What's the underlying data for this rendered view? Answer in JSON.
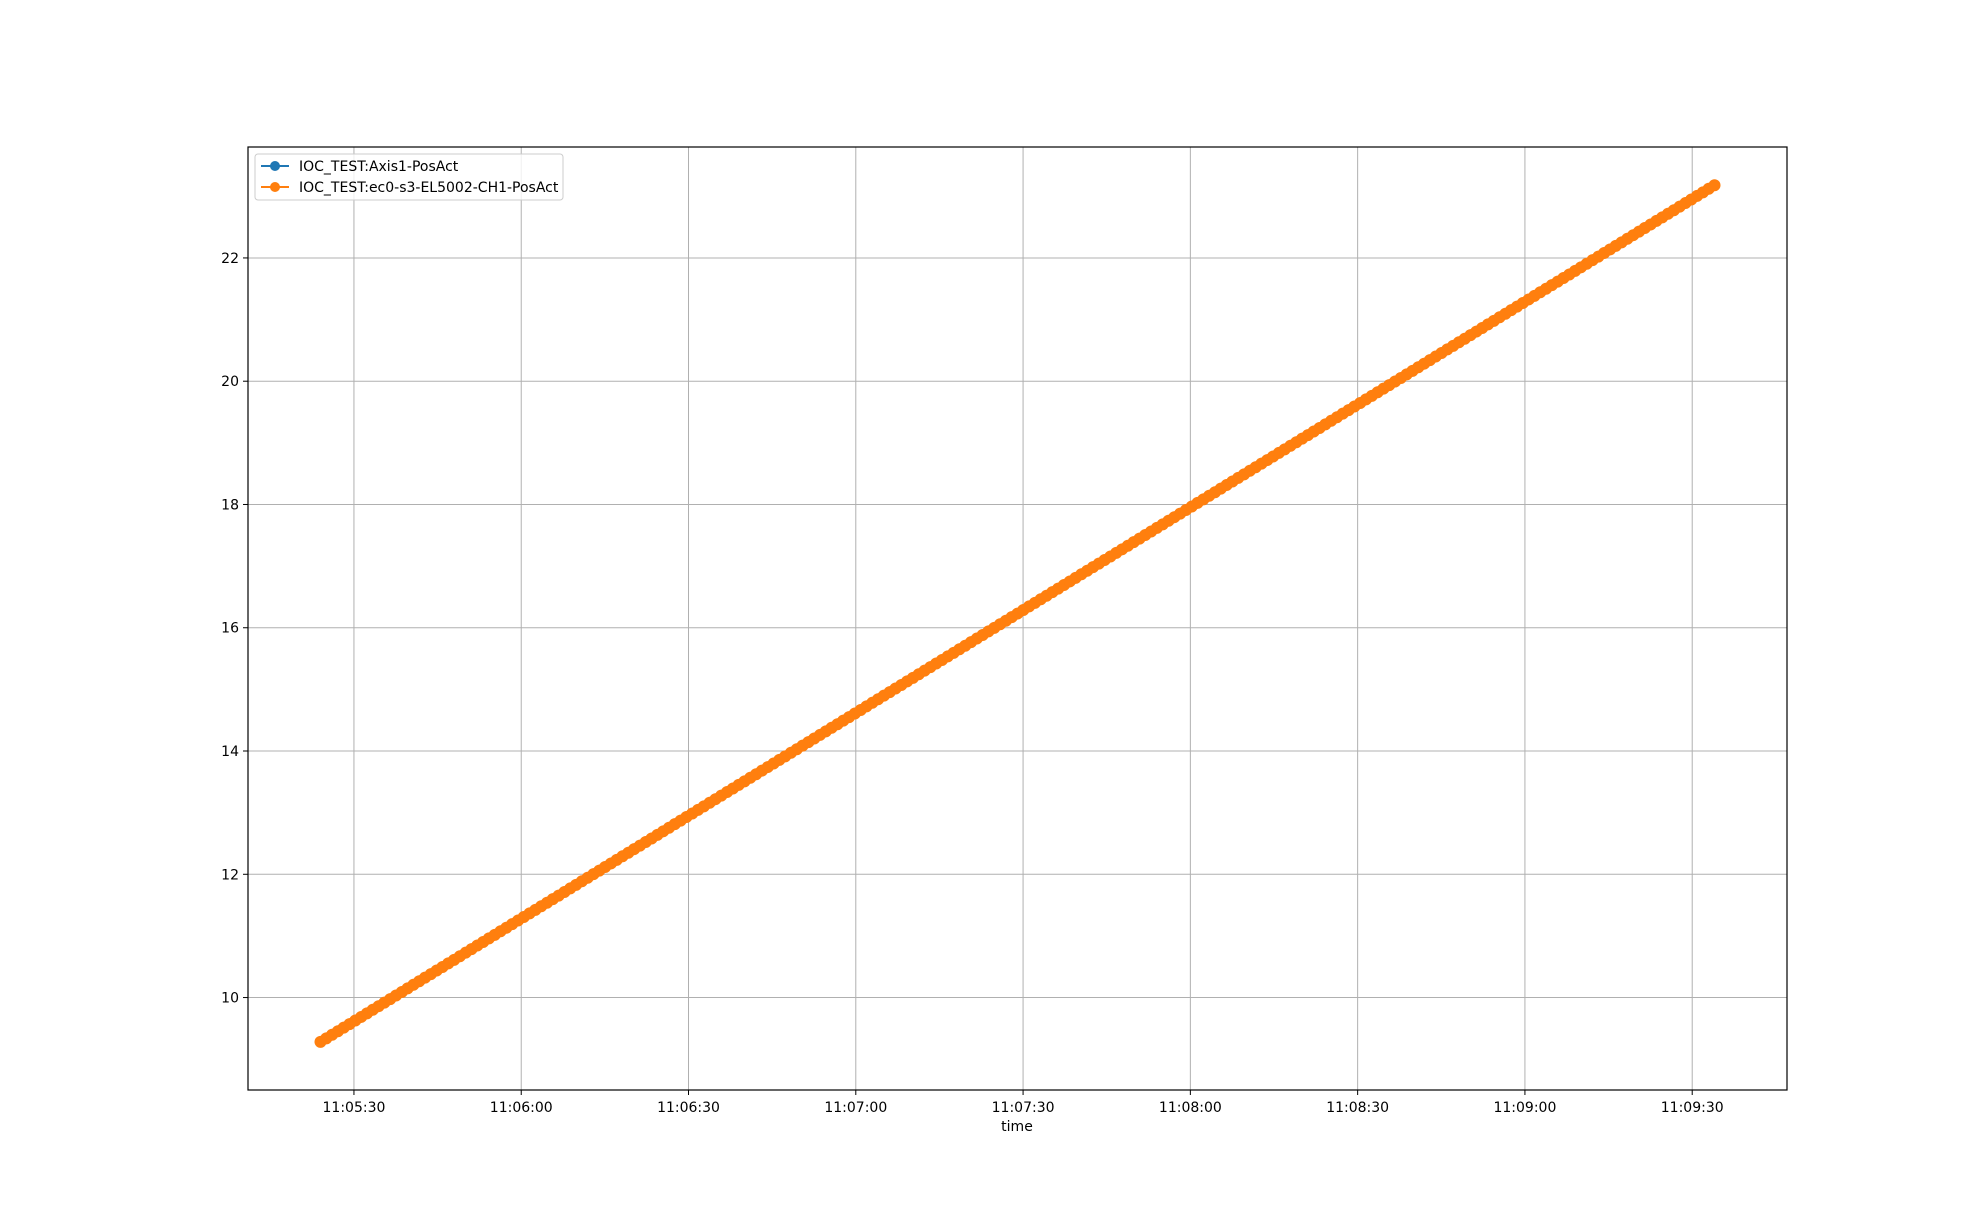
{
  "chart_data": {
    "type": "line",
    "xlabel": "time",
    "ylabel": "",
    "x_ticks": [
      "11:05:30",
      "11:06:00",
      "11:06:30",
      "11:07:00",
      "11:07:30",
      "11:08:00",
      "11:08:30",
      "11:09:00",
      "11:09:30"
    ],
    "y_ticks": [
      "10",
      "12",
      "14",
      "16",
      "18",
      "20",
      "22"
    ],
    "xlim": [
      "11:05:11",
      "11:09:47"
    ],
    "ylim": [
      8.5,
      23.8
    ],
    "grid": true,
    "legend_position": "top-left",
    "series": [
      {
        "name": "IOC_TEST:Axis1-PosAct",
        "color": "#1f77b4",
        "marker": "circle",
        "start": {
          "x": "11:05:24",
          "y": 9.28
        },
        "end": {
          "x": "11:09:34",
          "y": 23.18
        }
      },
      {
        "name": "IOC_TEST:ec0-s3-EL5002-CH1-PosAct",
        "color": "#ff7f0e",
        "marker": "circle",
        "start": {
          "x": "11:05:24",
          "y": 9.28
        },
        "end": {
          "x": "11:09:34",
          "y": 23.18
        }
      }
    ]
  }
}
